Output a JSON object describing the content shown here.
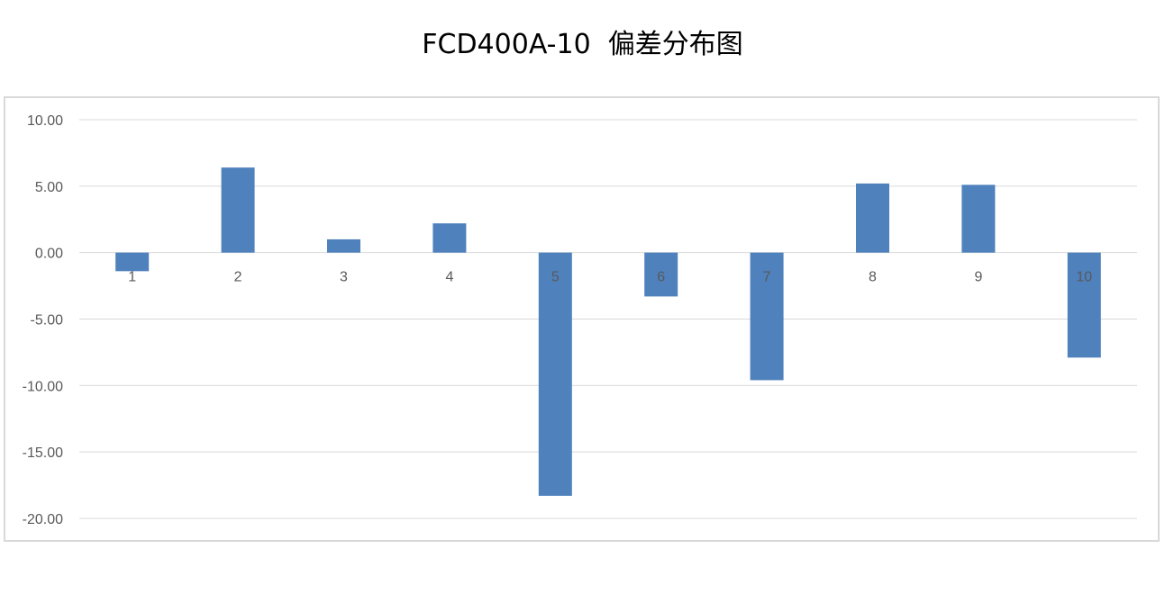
{
  "chart_data": {
    "type": "bar",
    "title": "FCD400A-10  偏差分布图",
    "xlabel": "",
    "ylabel": "",
    "categories": [
      "1",
      "2",
      "3",
      "4",
      "5",
      "6",
      "7",
      "8",
      "9",
      "10"
    ],
    "values": [
      -1.4,
      6.4,
      1.0,
      2.2,
      -18.3,
      -3.3,
      -9.6,
      5.2,
      5.1,
      -7.9
    ],
    "ylim": [
      -20,
      10
    ],
    "yticks": [
      "10.00",
      "5.00",
      "0.00",
      "-5.00",
      "-10.00",
      "-15.00",
      "-20.00"
    ],
    "ytick_values": [
      10,
      5,
      0,
      -5,
      -10,
      -15,
      -20
    ],
    "grid": true,
    "legend": "none",
    "bar_color": "#4f81bd",
    "grid_color": "#d9d9d9"
  }
}
